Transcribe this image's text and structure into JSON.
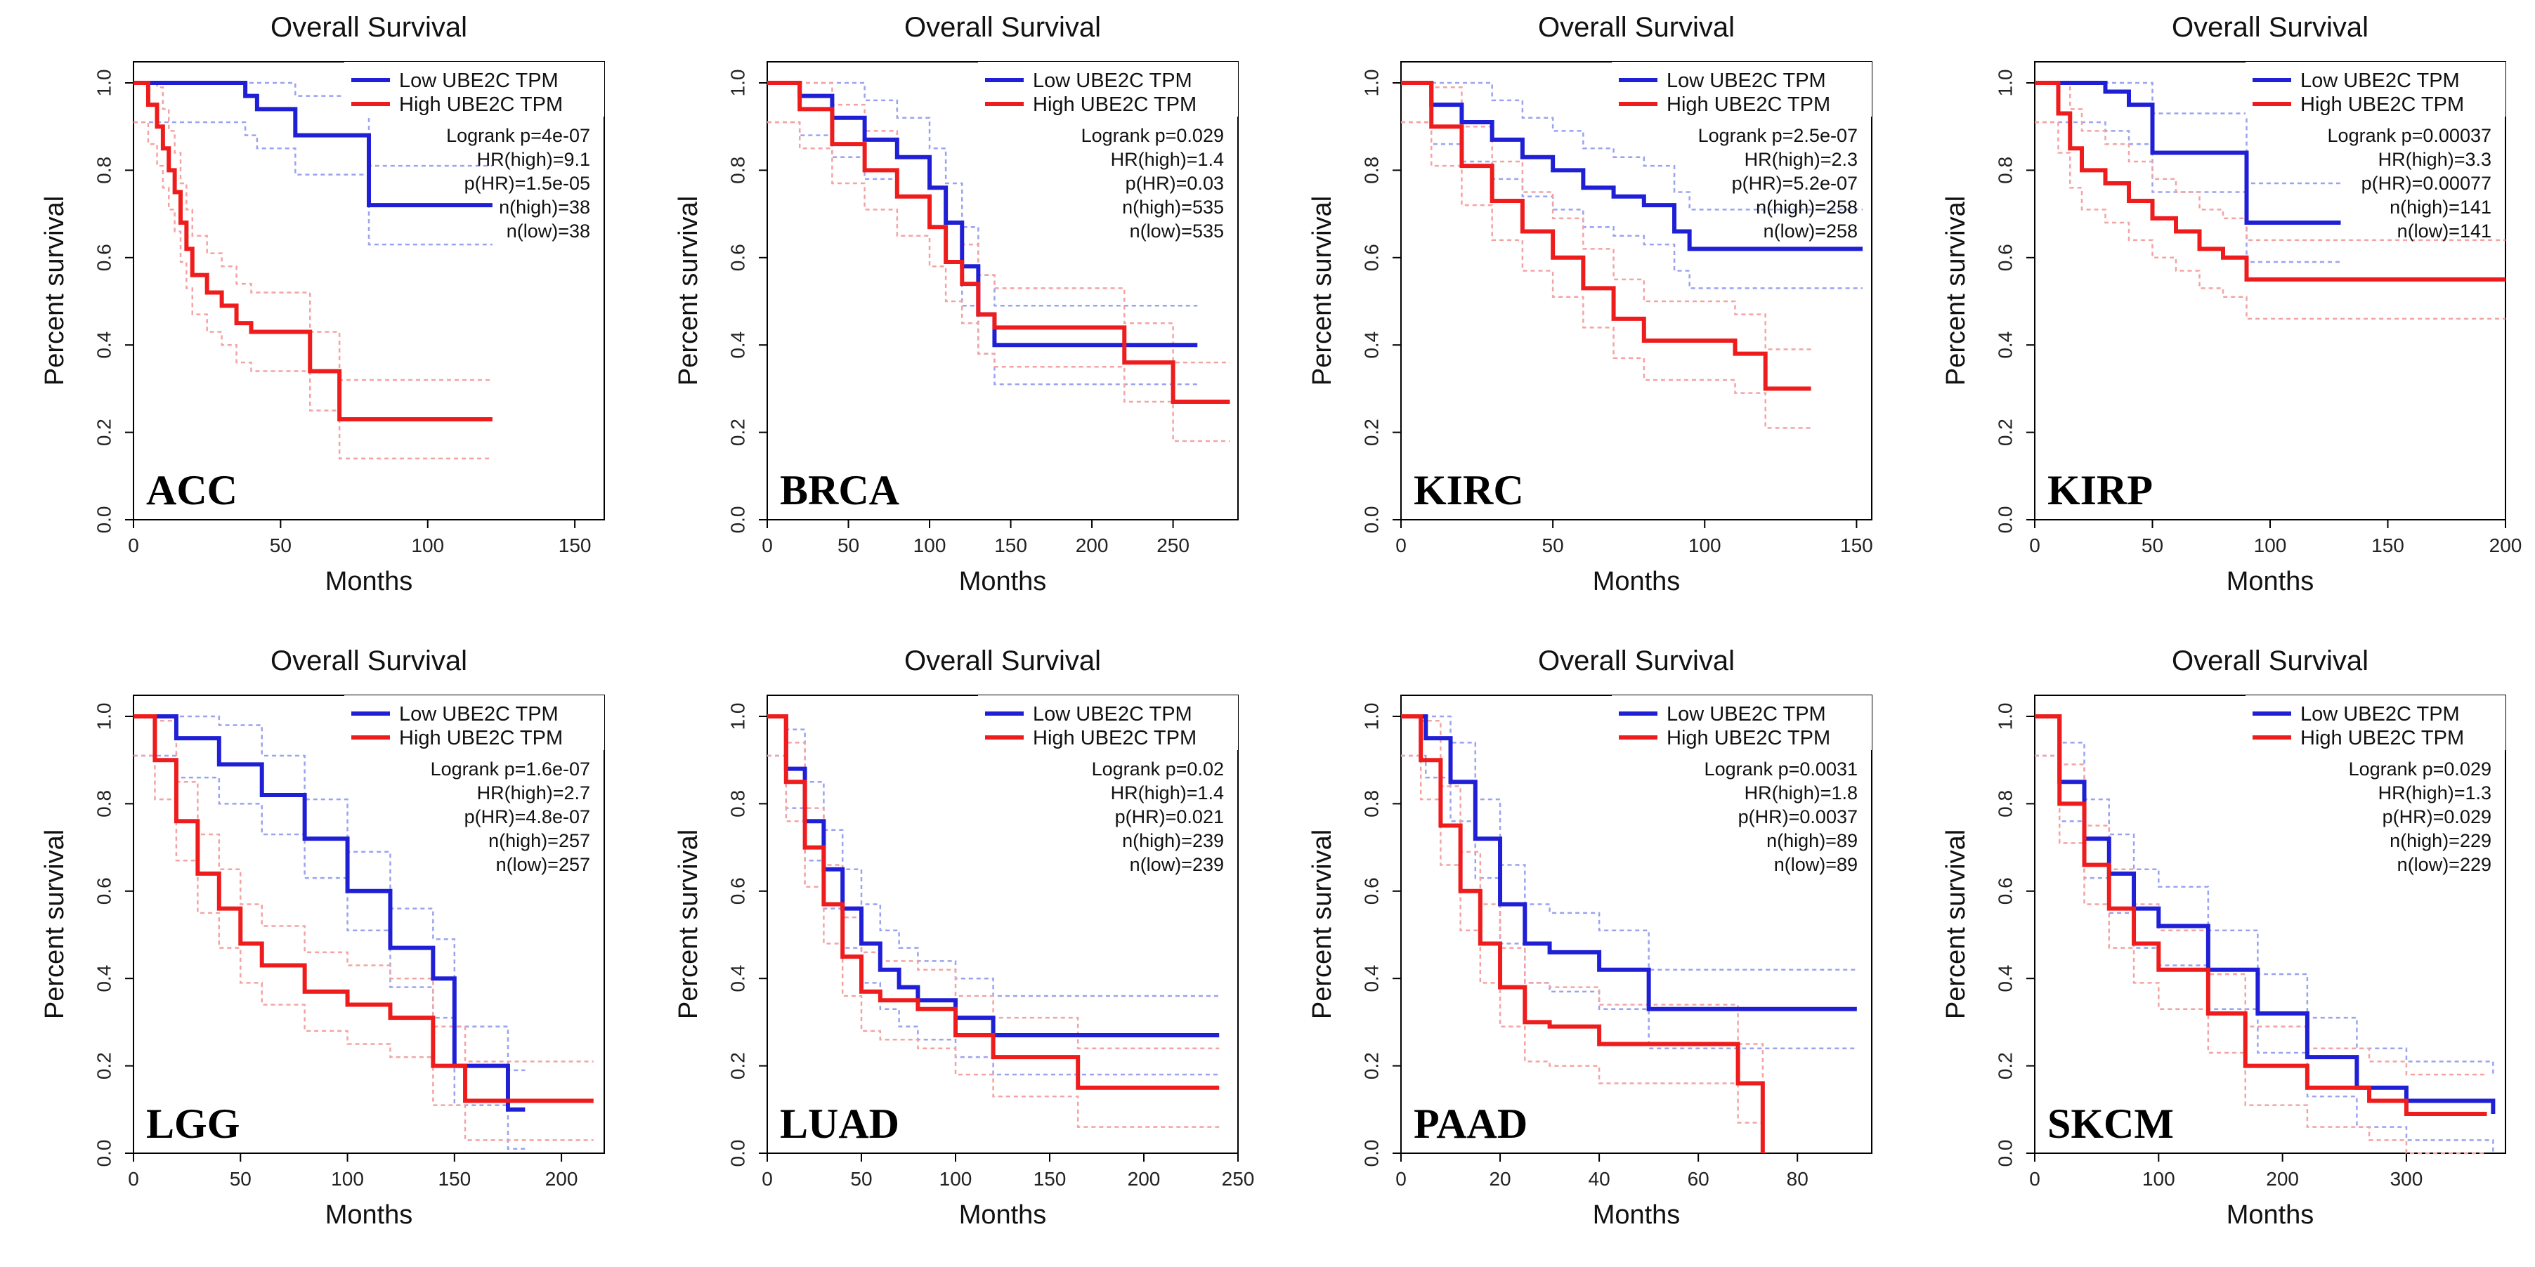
{
  "colors": {
    "low": "#1f1fd6",
    "high": "#ee1c1c",
    "low_ci": "#9aa3f0",
    "high_ci": "#f4a3a3"
  },
  "common": {
    "title": "Overall Survival",
    "xlabel": "Months",
    "ylabel": "Percent survival",
    "legend_low": "Low UBE2C TPM",
    "legend_high": "High UBE2C TPM",
    "yticks": [
      "0.0",
      "0.2",
      "0.4",
      "0.6",
      "0.8",
      "1.0"
    ]
  },
  "chart_data": [
    {
      "type": "line",
      "name": "ACC",
      "title": "Overall Survival",
      "xlabel": "Months",
      "ylabel": "Percent survival",
      "xlim": [
        0,
        160
      ],
      "ylim": [
        0,
        1
      ],
      "xticks": [
        0,
        50,
        100,
        150
      ],
      "stats": [
        "Logrank p=4e-07",
        "HR(high)=9.1",
        "p(HR)=1.5e-05",
        "n(high)=38",
        "n(low)=38"
      ],
      "series": [
        {
          "name": "Low UBE2C TPM",
          "x": [
            0,
            30,
            38,
            42,
            55,
            60,
            80,
            80,
            122
          ],
          "y": [
            1,
            1,
            0.97,
            0.94,
            0.88,
            0.88,
            0.88,
            0.72,
            0.72
          ]
        },
        {
          "name": "High UBE2C TPM",
          "x": [
            0,
            5,
            8,
            10,
            12,
            14,
            16,
            18,
            20,
            25,
            30,
            35,
            40,
            60,
            70,
            122
          ],
          "y": [
            1,
            0.95,
            0.9,
            0.85,
            0.8,
            0.75,
            0.68,
            0.62,
            0.56,
            0.52,
            0.49,
            0.45,
            0.43,
            0.34,
            0.23,
            0.23
          ]
        }
      ]
    },
    {
      "type": "line",
      "name": "BRCA",
      "title": "Overall Survival",
      "xlabel": "Months",
      "ylabel": "Percent survival",
      "xlim": [
        0,
        290
      ],
      "ylim": [
        0,
        1
      ],
      "xticks": [
        0,
        50,
        100,
        150,
        200,
        250
      ],
      "stats": [
        "Logrank p=0.029",
        "HR(high)=1.4",
        "p(HR)=0.03",
        "n(high)=535",
        "n(low)=535"
      ],
      "series": [
        {
          "name": "Low UBE2C TPM",
          "x": [
            0,
            20,
            40,
            60,
            80,
            100,
            110,
            120,
            130,
            140,
            265
          ],
          "y": [
            1,
            0.97,
            0.92,
            0.87,
            0.83,
            0.76,
            0.68,
            0.58,
            0.47,
            0.4,
            0.4
          ]
        },
        {
          "name": "High UBE2C TPM",
          "x": [
            0,
            20,
            40,
            60,
            80,
            100,
            110,
            120,
            130,
            140,
            220,
            250,
            285
          ],
          "y": [
            1,
            0.94,
            0.86,
            0.8,
            0.74,
            0.67,
            0.59,
            0.54,
            0.47,
            0.44,
            0.36,
            0.27,
            0.27
          ]
        }
      ]
    },
    {
      "type": "line",
      "name": "KIRC",
      "title": "Overall Survival",
      "xlabel": "Months",
      "ylabel": "Percent survival",
      "xlim": [
        0,
        155
      ],
      "ylim": [
        0,
        1
      ],
      "xticks": [
        0,
        50,
        100,
        150
      ],
      "stats": [
        "Logrank p=2.5e-07",
        "HR(high)=2.3",
        "p(HR)=5.2e-07",
        "n(high)=258",
        "n(low)=258"
      ],
      "series": [
        {
          "name": "Low UBE2C TPM",
          "x": [
            0,
            10,
            20,
            30,
            40,
            50,
            60,
            70,
            80,
            90,
            95,
            152
          ],
          "y": [
            1,
            0.95,
            0.91,
            0.87,
            0.83,
            0.8,
            0.76,
            0.74,
            0.72,
            0.66,
            0.62,
            0.62
          ]
        },
        {
          "name": "High UBE2C TPM",
          "x": [
            0,
            10,
            20,
            30,
            40,
            50,
            60,
            70,
            80,
            90,
            110,
            120,
            135
          ],
          "y": [
            1,
            0.9,
            0.81,
            0.73,
            0.66,
            0.6,
            0.53,
            0.46,
            0.41,
            0.41,
            0.38,
            0.3,
            0.3
          ]
        }
      ]
    },
    {
      "type": "line",
      "name": "KIRP",
      "title": "Overall Survival",
      "xlabel": "Months",
      "ylabel": "Percent survival",
      "xlim": [
        0,
        200
      ],
      "ylim": [
        0,
        1
      ],
      "xticks": [
        0,
        50,
        100,
        150,
        200
      ],
      "stats": [
        "Logrank p=0.00037",
        "HR(high)=3.3",
        "p(HR)=0.00077",
        "n(high)=141",
        "n(low)=141"
      ],
      "series": [
        {
          "name": "Low UBE2C TPM",
          "x": [
            0,
            20,
            30,
            40,
            50,
            60,
            85,
            90,
            130
          ],
          "y": [
            1,
            1,
            0.98,
            0.95,
            0.84,
            0.84,
            0.84,
            0.68,
            0.68
          ]
        },
        {
          "name": "High UBE2C TPM",
          "x": [
            0,
            10,
            15,
            20,
            30,
            40,
            50,
            60,
            70,
            80,
            90,
            200
          ],
          "y": [
            1,
            0.93,
            0.85,
            0.8,
            0.77,
            0.73,
            0.69,
            0.66,
            0.62,
            0.6,
            0.55,
            0.55
          ]
        }
      ]
    },
    {
      "type": "line",
      "name": "LGG",
      "title": "Overall Survival",
      "xlabel": "Months",
      "ylabel": "Percent survival",
      "xlim": [
        0,
        220
      ],
      "ylim": [
        0,
        1
      ],
      "xticks": [
        0,
        50,
        100,
        150,
        200
      ],
      "stats": [
        "Logrank p=1.6e-07",
        "HR(high)=2.7",
        "p(HR)=4.8e-07",
        "n(high)=257",
        "n(low)=257"
      ],
      "series": [
        {
          "name": "Low UBE2C TPM",
          "x": [
            0,
            20,
            40,
            60,
            80,
            100,
            120,
            140,
            150,
            175,
            183
          ],
          "y": [
            1,
            0.95,
            0.89,
            0.82,
            0.72,
            0.6,
            0.47,
            0.4,
            0.2,
            0.1,
            0.1
          ]
        },
        {
          "name": "High UBE2C TPM",
          "x": [
            0,
            10,
            20,
            30,
            40,
            50,
            60,
            80,
            100,
            120,
            140,
            155,
            215
          ],
          "y": [
            1,
            0.9,
            0.76,
            0.64,
            0.56,
            0.48,
            0.43,
            0.37,
            0.34,
            0.31,
            0.2,
            0.12,
            0.12
          ]
        }
      ]
    },
    {
      "type": "line",
      "name": "LUAD",
      "title": "Overall Survival",
      "xlabel": "Months",
      "ylabel": "Percent survival",
      "xlim": [
        0,
        250
      ],
      "ylim": [
        0,
        1
      ],
      "xticks": [
        0,
        50,
        100,
        150,
        200,
        250
      ],
      "stats": [
        "Logrank p=0.02",
        "HR(high)=1.4",
        "p(HR)=0.021",
        "n(high)=239",
        "n(low)=239"
      ],
      "series": [
        {
          "name": "Low UBE2C TPM",
          "x": [
            0,
            10,
            20,
            30,
            40,
            50,
            60,
            70,
            80,
            100,
            120,
            240
          ],
          "y": [
            1,
            0.88,
            0.76,
            0.65,
            0.56,
            0.48,
            0.42,
            0.38,
            0.35,
            0.31,
            0.27,
            0.27
          ]
        },
        {
          "name": "High UBE2C TPM",
          "x": [
            0,
            10,
            20,
            30,
            40,
            50,
            60,
            80,
            100,
            120,
            165,
            240
          ],
          "y": [
            1,
            0.85,
            0.7,
            0.57,
            0.45,
            0.37,
            0.35,
            0.33,
            0.27,
            0.22,
            0.15,
            0.15
          ]
        }
      ]
    },
    {
      "type": "line",
      "name": "PAAD",
      "title": "Overall Survival",
      "xlabel": "Months",
      "ylabel": "Percent survival",
      "xlim": [
        0,
        95
      ],
      "ylim": [
        0,
        1
      ],
      "xticks": [
        0,
        20,
        40,
        60,
        80
      ],
      "stats": [
        "Logrank p=0.0031",
        "HR(high)=1.8",
        "p(HR)=0.0037",
        "n(high)=89",
        "n(low)=89"
      ],
      "series": [
        {
          "name": "Low UBE2C TPM",
          "x": [
            0,
            5,
            10,
            15,
            20,
            25,
            30,
            40,
            50,
            92
          ],
          "y": [
            1,
            0.95,
            0.85,
            0.72,
            0.57,
            0.48,
            0.46,
            0.42,
            0.33,
            0.33
          ]
        },
        {
          "name": "High UBE2C TPM",
          "x": [
            0,
            4,
            8,
            12,
            16,
            20,
            25,
            30,
            40,
            60,
            68,
            72,
            73
          ],
          "y": [
            1,
            0.9,
            0.75,
            0.6,
            0.48,
            0.38,
            0.3,
            0.29,
            0.25,
            0.25,
            0.16,
            0.16,
            0
          ]
        }
      ]
    },
    {
      "type": "line",
      "name": "SKCM",
      "title": "Overall Survival",
      "xlabel": "Months",
      "ylabel": "Percent survival",
      "xlim": [
        0,
        380
      ],
      "ylim": [
        0,
        1
      ],
      "xticks": [
        0,
        100,
        200,
        300
      ],
      "stats": [
        "Logrank p=0.029",
        "HR(high)=1.3",
        "p(HR)=0.029",
        "n(high)=229",
        "n(low)=229"
      ],
      "series": [
        {
          "name": "Low UBE2C TPM",
          "x": [
            0,
            20,
            40,
            60,
            80,
            100,
            140,
            180,
            220,
            260,
            300,
            370
          ],
          "y": [
            1,
            0.85,
            0.72,
            0.64,
            0.56,
            0.52,
            0.42,
            0.32,
            0.22,
            0.15,
            0.12,
            0.09
          ]
        },
        {
          "name": "High UBE2C TPM",
          "x": [
            0,
            20,
            40,
            60,
            80,
            100,
            140,
            170,
            220,
            270,
            300,
            365
          ],
          "y": [
            1,
            0.8,
            0.66,
            0.56,
            0.48,
            0.42,
            0.32,
            0.2,
            0.15,
            0.12,
            0.09,
            0.09
          ]
        }
      ]
    }
  ]
}
